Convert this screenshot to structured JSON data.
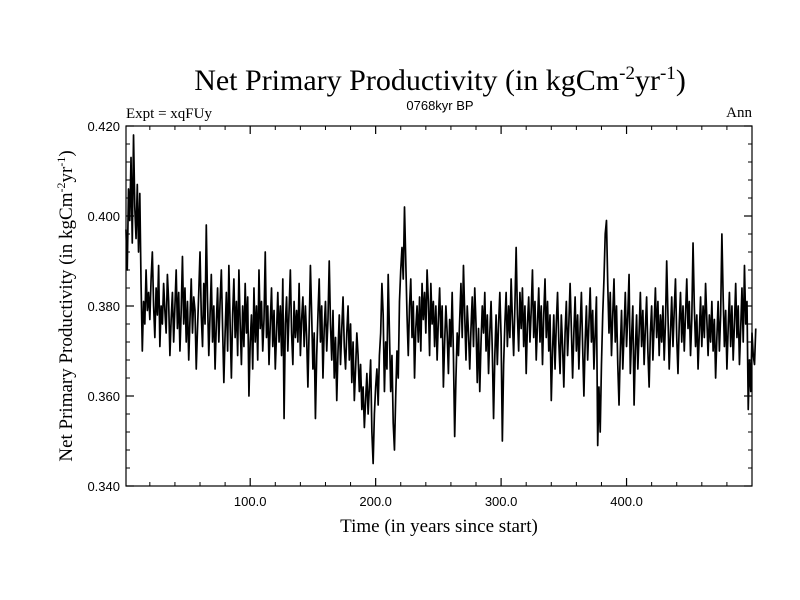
{
  "chart_data": {
    "type": "line",
    "title_main": "Net Primary Productivity (in kgCm",
    "title_exp1": "-2",
    "title_mid": "yr",
    "title_exp2": "-1",
    "title_end": ")",
    "subtitle_left": "Expt = xqFUy",
    "subtitle_center": "0768kyr BP",
    "subtitle_right": "Ann",
    "xlabel": "Time (in years since start)",
    "ylabel_main": "Net Primary Productivity (in kgCm",
    "ylabel_exp1": "-2",
    "ylabel_mid": "yr",
    "ylabel_exp2": "-1",
    "ylabel_end": ")",
    "xlim": [
      1,
      500
    ],
    "ylim": [
      0.34,
      0.42
    ],
    "x_ticks": [
      100,
      200,
      300,
      400
    ],
    "x_tick_labels": [
      "100.0",
      "200.0",
      "300.0",
      "400.0"
    ],
    "y_ticks": [
      0.34,
      0.36,
      0.38,
      0.4,
      0.42
    ],
    "y_tick_labels": [
      "0.340",
      "0.360",
      "0.380",
      "0.400",
      "0.420"
    ],
    "series": [
      {
        "name": "Net Primary Productivity",
        "x_start": 1,
        "x_step": 1,
        "values": [
          0.397,
          0.388,
          0.406,
          0.399,
          0.413,
          0.394,
          0.418,
          0.402,
          0.395,
          0.407,
          0.392,
          0.405,
          0.385,
          0.37,
          0.381,
          0.376,
          0.388,
          0.379,
          0.383,
          0.377,
          0.386,
          0.392,
          0.38,
          0.373,
          0.384,
          0.378,
          0.389,
          0.371,
          0.38,
          0.376,
          0.385,
          0.379,
          0.374,
          0.387,
          0.381,
          0.369,
          0.377,
          0.383,
          0.372,
          0.38,
          0.388,
          0.375,
          0.383,
          0.37,
          0.379,
          0.391,
          0.376,
          0.384,
          0.372,
          0.381,
          0.368,
          0.377,
          0.386,
          0.374,
          0.382,
          0.379,
          0.366,
          0.375,
          0.383,
          0.392,
          0.378,
          0.371,
          0.385,
          0.376,
          0.398,
          0.381,
          0.369,
          0.378,
          0.387,
          0.372,
          0.38,
          0.366,
          0.376,
          0.384,
          0.372,
          0.381,
          0.388,
          0.375,
          0.363,
          0.374,
          0.383,
          0.37,
          0.389,
          0.376,
          0.364,
          0.378,
          0.386,
          0.373,
          0.381,
          0.369,
          0.388,
          0.376,
          0.367,
          0.38,
          0.371,
          0.385,
          0.374,
          0.382,
          0.36,
          0.372,
          0.378,
          0.366,
          0.384,
          0.372,
          0.38,
          0.368,
          0.388,
          0.375,
          0.381,
          0.37,
          0.377,
          0.392,
          0.373,
          0.38,
          0.367,
          0.376,
          0.384,
          0.371,
          0.379,
          0.366,
          0.374,
          0.383,
          0.372,
          0.38,
          0.369,
          0.386,
          0.355,
          0.376,
          0.382,
          0.37,
          0.379,
          0.388,
          0.374,
          0.367,
          0.381,
          0.373,
          0.379,
          0.372,
          0.385,
          0.369,
          0.377,
          0.382,
          0.371,
          0.38,
          0.373,
          0.362,
          0.375,
          0.389,
          0.378,
          0.366,
          0.374,
          0.355,
          0.369,
          0.378,
          0.386,
          0.372,
          0.38,
          0.364,
          0.375,
          0.381,
          0.37,
          0.377,
          0.39,
          0.376,
          0.368,
          0.379,
          0.364,
          0.373,
          0.359,
          0.37,
          0.378,
          0.367,
          0.375,
          0.382,
          0.371,
          0.366,
          0.374,
          0.38,
          0.368,
          0.376,
          0.363,
          0.372,
          0.359,
          0.366,
          0.374,
          0.369,
          0.361,
          0.367,
          0.357,
          0.362,
          0.353,
          0.359,
          0.365,
          0.356,
          0.362,
          0.368,
          0.352,
          0.345,
          0.356,
          0.362,
          0.366,
          0.358,
          0.369,
          0.374,
          0.385,
          0.378,
          0.361,
          0.372,
          0.366,
          0.387,
          0.374,
          0.361,
          0.369,
          0.354,
          0.348,
          0.36,
          0.37,
          0.364,
          0.381,
          0.388,
          0.393,
          0.386,
          0.402,
          0.39,
          0.378,
          0.369,
          0.38,
          0.386,
          0.373,
          0.381,
          0.364,
          0.375,
          0.38,
          0.372,
          0.382,
          0.37,
          0.385,
          0.377,
          0.383,
          0.374,
          0.388,
          0.381,
          0.369,
          0.385,
          0.376,
          0.381,
          0.371,
          0.38,
          0.368,
          0.377,
          0.384,
          0.373,
          0.38,
          0.362,
          0.372,
          0.38,
          0.374,
          0.365,
          0.377,
          0.371,
          0.383,
          0.369,
          0.351,
          0.364,
          0.374,
          0.369,
          0.377,
          0.385,
          0.373,
          0.389,
          0.378,
          0.368,
          0.38,
          0.374,
          0.366,
          0.375,
          0.382,
          0.371,
          0.384,
          0.376,
          0.363,
          0.375,
          0.361,
          0.372,
          0.38,
          0.374,
          0.383,
          0.37,
          0.378,
          0.365,
          0.374,
          0.381,
          0.37,
          0.355,
          0.369,
          0.378,
          0.367,
          0.376,
          0.383,
          0.373,
          0.35,
          0.367,
          0.376,
          0.383,
          0.371,
          0.38,
          0.373,
          0.386,
          0.377,
          0.369,
          0.38,
          0.393,
          0.378,
          0.37,
          0.383,
          0.375,
          0.384,
          0.371,
          0.38,
          0.365,
          0.376,
          0.382,
          0.372,
          0.379,
          0.388,
          0.373,
          0.381,
          0.368,
          0.376,
          0.384,
          0.372,
          0.38,
          0.367,
          0.378,
          0.386,
          0.373,
          0.381,
          0.37,
          0.378,
          0.359,
          0.37,
          0.378,
          0.366,
          0.376,
          0.383,
          0.372,
          0.365,
          0.378,
          0.371,
          0.362,
          0.374,
          0.381,
          0.369,
          0.376,
          0.385,
          0.375,
          0.364,
          0.374,
          0.382,
          0.37,
          0.378,
          0.366,
          0.375,
          0.383,
          0.371,
          0.36,
          0.372,
          0.38,
          0.368,
          0.376,
          0.384,
          0.372,
          0.379,
          0.366,
          0.374,
          0.382,
          0.349,
          0.362,
          0.352,
          0.367,
          0.378,
          0.386,
          0.396,
          0.399,
          0.385,
          0.374,
          0.383,
          0.369,
          0.378,
          0.386,
          0.372,
          0.38,
          0.367,
          0.358,
          0.37,
          0.379,
          0.366,
          0.374,
          0.383,
          0.371,
          0.378,
          0.387,
          0.365,
          0.373,
          0.38,
          0.358,
          0.37,
          0.378,
          0.366,
          0.374,
          0.383,
          0.371,
          0.379,
          0.367,
          0.375,
          0.382,
          0.37,
          0.362,
          0.374,
          0.38,
          0.368,
          0.376,
          0.384,
          0.373,
          0.381,
          0.369,
          0.378,
          0.372,
          0.38,
          0.368,
          0.376,
          0.39,
          0.378,
          0.366,
          0.374,
          0.382,
          0.371,
          0.379,
          0.386,
          0.373,
          0.365,
          0.376,
          0.383,
          0.372,
          0.38,
          0.37,
          0.378,
          0.386,
          0.375,
          0.381,
          0.369,
          0.377,
          0.394,
          0.38,
          0.371,
          0.378,
          0.366,
          0.374,
          0.382,
          0.371,
          0.38,
          0.373,
          0.385,
          0.377,
          0.369,
          0.378,
          0.372,
          0.381,
          0.37,
          0.377,
          0.364,
          0.373,
          0.381,
          0.37,
          0.378,
          0.396,
          0.382,
          0.371,
          0.379,
          0.366,
          0.375,
          0.383,
          0.371,
          0.38,
          0.368,
          0.376,
          0.385,
          0.373,
          0.38,
          0.367,
          0.375,
          0.384,
          0.372,
          0.389,
          0.376,
          0.381,
          0.357,
          0.368,
          0.361,
          0.374,
          0.369,
          0.367,
          0.375
        ]
      }
    ]
  }
}
